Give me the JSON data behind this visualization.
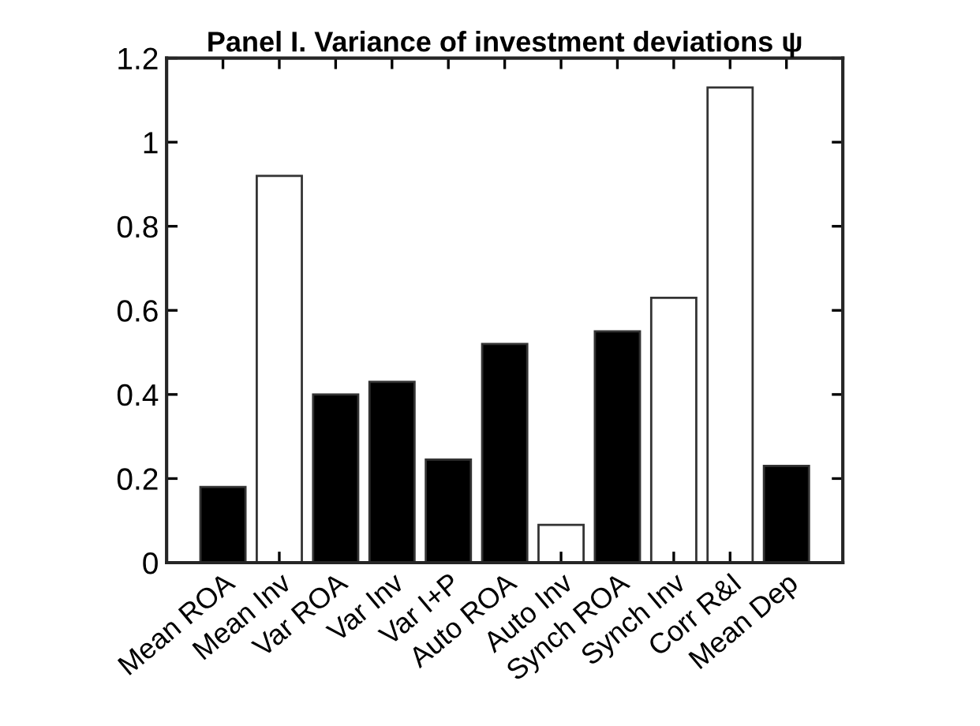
{
  "chart_data": {
    "type": "bar",
    "title": "Panel I. Variance of investment deviations ψ",
    "categories": [
      "Mean ROA",
      "Mean Inv",
      "Var ROA",
      "Var Inv",
      "Var I+P",
      "Auto ROA",
      "Auto Inv",
      "Synch ROA",
      "Synch Inv",
      "Corr R&I",
      "Mean Dep"
    ],
    "values": [
      0.18,
      0.92,
      0.4,
      0.43,
      0.245,
      0.52,
      0.09,
      0.55,
      0.63,
      1.13,
      0.23
    ],
    "colors": [
      "#000000",
      "#ffffff",
      "#000000",
      "#000000",
      "#000000",
      "#000000",
      "#ffffff",
      "#000000",
      "#ffffff",
      "#ffffff",
      "#000000"
    ],
    "ylim": [
      0,
      1.2
    ],
    "yticks": [
      0,
      0.2,
      0.4,
      0.6,
      0.8,
      1,
      1.2
    ],
    "grid": false
  }
}
